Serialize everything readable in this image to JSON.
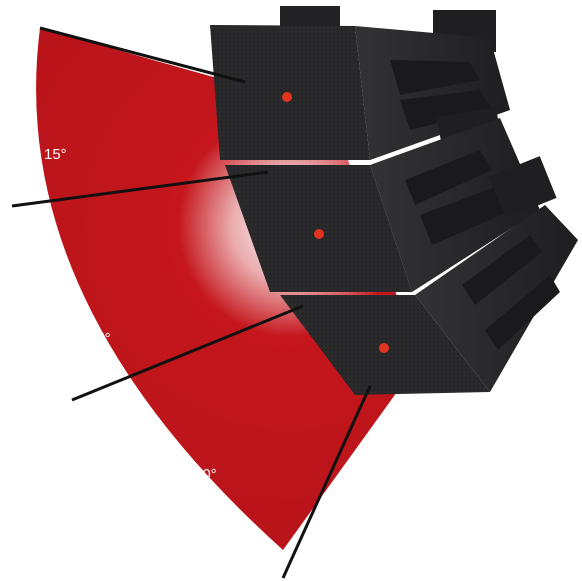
{
  "diagram": {
    "angles": [
      {
        "label": "15°"
      },
      {
        "label": "15°"
      },
      {
        "label": "40°"
      }
    ]
  },
  "colors": {
    "coverage_red": "#c4161c",
    "cabinet_dark": "#2c2c2e",
    "cabinet_mid": "#3a3a3c",
    "bracket": "#222224",
    "driver_dot": "#e2331f",
    "divider_line": "#111111"
  }
}
